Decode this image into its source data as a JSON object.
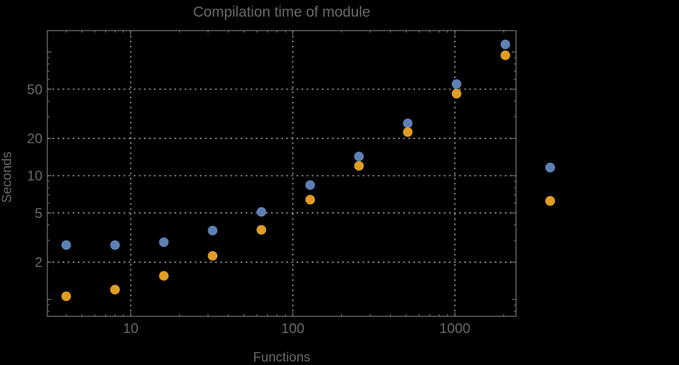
{
  "title": "Compilation time of module",
  "colors": {
    "background": "#000000",
    "frame": "#737373",
    "grid": "#969696",
    "text": "#696969",
    "series_blue": "#5E81B5",
    "series_orange": "#E19C24"
  },
  "chart_data": {
    "type": "scatter",
    "title": "Compilation time of module",
    "xlabel": "Functions",
    "ylabel": "Seconds",
    "xscale": "log",
    "yscale": "log",
    "xlim": [
      3.06,
      2384
    ],
    "ylim": [
      0.73,
      148.8
    ],
    "grid": true,
    "x": [
      4,
      8,
      16,
      32,
      64,
      128,
      256,
      512,
      1024,
      2048
    ],
    "series": [
      {
        "name": "blue",
        "color": "#5E81B5",
        "values": [
          2.75,
          2.75,
          2.9,
          3.6,
          5.1,
          8.4,
          14.3,
          26.5,
          55,
          115
        ]
      },
      {
        "name": "orange",
        "color": "#E19C24",
        "values": [
          1.06,
          1.2,
          1.55,
          2.25,
          3.65,
          6.4,
          12,
          22.5,
          46,
          94
        ]
      }
    ],
    "x_ticks": [
      10,
      100,
      1000
    ],
    "x_tick_labels": [
      "10",
      "100",
      "1000"
    ],
    "y_ticks": [
      2,
      5,
      10,
      20,
      50
    ],
    "y_tick_labels": [
      "2",
      "5",
      "10",
      "20",
      "50"
    ],
    "legend_position": "right-outside",
    "legend_markers": [
      {
        "color": "#5E81B5"
      },
      {
        "color": "#E19C24"
      }
    ]
  }
}
